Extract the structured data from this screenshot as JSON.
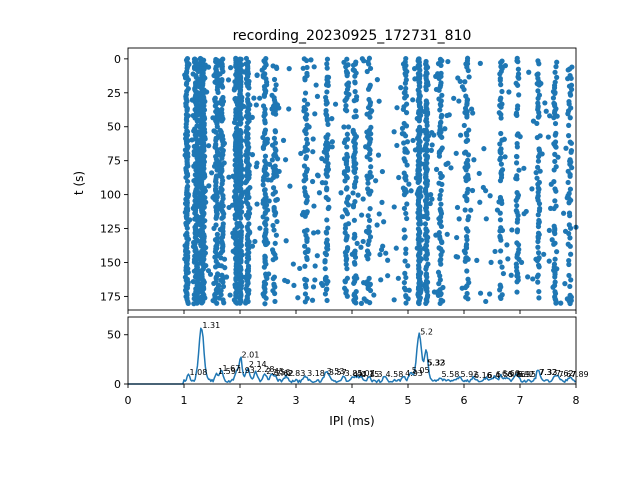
{
  "figure": {
    "title": "recording_20230925_172731_810"
  },
  "colors": {
    "series": "#1f77b4",
    "axes": "#000000",
    "background": "#ffffff"
  },
  "chart_data": [
    {
      "type": "scatter",
      "title": "recording_20230925_172731_810",
      "xlabel": "",
      "ylabel": "t (s)",
      "xlim": [
        0,
        8
      ],
      "ylim": [
        185,
        -8
      ],
      "y_inverted": true,
      "yticks": [
        0,
        25,
        50,
        75,
        100,
        125,
        150,
        175
      ],
      "x_ticklabels_visible": false,
      "grid": false,
      "legend": "none",
      "columns": [
        {
          "x": 1.05,
          "width": 0.05,
          "weight": 1.6
        },
        {
          "x": 1.22,
          "width": 0.07,
          "weight": 2.2
        },
        {
          "x": 1.33,
          "width": 0.08,
          "weight": 3.6
        },
        {
          "x": 1.58,
          "width": 0.06,
          "weight": 1.4
        },
        {
          "x": 1.68,
          "width": 0.06,
          "weight": 1.3
        },
        {
          "x": 1.93,
          "width": 0.05,
          "weight": 1.5
        },
        {
          "x": 2.01,
          "width": 0.04,
          "weight": 2.0
        },
        {
          "x": 2.14,
          "width": 0.05,
          "weight": 1.5
        },
        {
          "x": 2.45,
          "width": 0.06,
          "weight": 1.0
        },
        {
          "x": 2.62,
          "width": 0.06,
          "weight": 0.8
        },
        {
          "x": 3.18,
          "width": 0.06,
          "weight": 0.8
        },
        {
          "x": 3.55,
          "width": 0.05,
          "weight": 0.8
        },
        {
          "x": 3.9,
          "width": 0.06,
          "weight": 0.9
        },
        {
          "x": 4.05,
          "width": 0.05,
          "weight": 0.8
        },
        {
          "x": 4.3,
          "width": 0.06,
          "weight": 0.7
        },
        {
          "x": 4.95,
          "width": 0.05,
          "weight": 0.7
        },
        {
          "x": 5.2,
          "width": 0.04,
          "weight": 2.2
        },
        {
          "x": 5.33,
          "width": 0.05,
          "weight": 1.5
        },
        {
          "x": 5.58,
          "width": 0.06,
          "weight": 0.8
        },
        {
          "x": 6.05,
          "width": 0.06,
          "weight": 0.6
        },
        {
          "x": 6.66,
          "width": 0.05,
          "weight": 0.7
        },
        {
          "x": 6.95,
          "width": 0.05,
          "weight": 0.7
        },
        {
          "x": 7.33,
          "width": 0.05,
          "weight": 0.8
        },
        {
          "x": 7.62,
          "width": 0.05,
          "weight": 0.7
        },
        {
          "x": 7.89,
          "width": 0.05,
          "weight": 0.6
        }
      ],
      "background_points_per_row": 18,
      "row_spacing": 1.2,
      "t_range": [
        0,
        180
      ],
      "sparse_bands": [
        {
          "from": 8,
          "to": 10
        },
        {
          "from": 20,
          "to": 28
        },
        {
          "from": 45,
          "to": 52
        },
        {
          "from": 88,
          "to": 95
        },
        {
          "from": 118,
          "to": 126
        },
        {
          "from": 150,
          "to": 158
        }
      ]
    },
    {
      "type": "line",
      "xlabel": "IPI (ms)",
      "ylabel": "",
      "xlim": [
        0,
        8
      ],
      "ylim": [
        0,
        68
      ],
      "xticks": [
        0,
        1,
        2,
        3,
        4,
        5,
        6,
        7,
        8
      ],
      "yticks": [
        0,
        50
      ],
      "grid": false,
      "legend": "none",
      "peaks": [
        {
          "x": 1.08,
          "y": 8,
          "label": "1.08"
        },
        {
          "x": 1.31,
          "y": 56,
          "label": "1.31"
        },
        {
          "x": 1.59,
          "y": 9,
          "label": "1.59"
        },
        {
          "x": 1.67,
          "y": 12,
          "label": "1.67"
        },
        {
          "x": 1.93,
          "y": 10,
          "label": "1.93"
        },
        {
          "x": 2.01,
          "y": 26,
          "label": "2.01"
        },
        {
          "x": 2.14,
          "y": 16,
          "label": "2.14"
        },
        {
          "x": 2.28,
          "y": 11,
          "label": "2.28"
        },
        {
          "x": 2.45,
          "y": 9,
          "label": "2.45"
        },
        {
          "x": 2.56,
          "y": 8,
          "label": "2.56"
        },
        {
          "x": 2.62,
          "y": 7,
          "label": "2.62"
        },
        {
          "x": 2.83,
          "y": 7,
          "label": "2.83"
        },
        {
          "x": 3.18,
          "y": 7,
          "label": "3.18"
        },
        {
          "x": 3.53,
          "y": 9,
          "label": "3.53"
        },
        {
          "x": 3.57,
          "y": 8,
          "label": "3.57"
        },
        {
          "x": 3.85,
          "y": 7,
          "label": "3.85"
        },
        {
          "x": 4.0,
          "y": 6,
          "label": "4.0"
        },
        {
          "x": 4.07,
          "y": 7,
          "label": "4.07"
        },
        {
          "x": 4.15,
          "y": 6,
          "label": "4.15"
        },
        {
          "x": 4.3,
          "y": 6,
          "label": "4.3"
        },
        {
          "x": 4.58,
          "y": 6,
          "label": "4.58"
        },
        {
          "x": 4.93,
          "y": 7,
          "label": "4.93"
        },
        {
          "x": 5.05,
          "y": 10,
          "label": "5.05"
        },
        {
          "x": 5.2,
          "y": 49,
          "label": "5.2"
        },
        {
          "x": 5.32,
          "y": 18,
          "label": "5.32"
        },
        {
          "x": 5.33,
          "y": 18,
          "label": "5.33"
        },
        {
          "x": 5.58,
          "y": 6,
          "label": "5.58"
        },
        {
          "x": 5.92,
          "y": 6,
          "label": "5.92"
        },
        {
          "x": 6.16,
          "y": 5,
          "label": "6.16"
        },
        {
          "x": 6.4,
          "y": 5,
          "label": "6.4"
        },
        {
          "x": 6.55,
          "y": 6,
          "label": "6.55"
        },
        {
          "x": 6.66,
          "y": 7,
          "label": "6.66"
        },
        {
          "x": 6.76,
          "y": 6,
          "label": "6.76"
        },
        {
          "x": 6.92,
          "y": 6,
          "label": "6.92"
        },
        {
          "x": 6.95,
          "y": 6,
          "label": "6.95"
        },
        {
          "x": 7.32,
          "y": 8,
          "label": "7.32"
        },
        {
          "x": 7.33,
          "y": 8,
          "label": "7.33"
        },
        {
          "x": 7.62,
          "y": 7,
          "label": "7.62"
        },
        {
          "x": 7.67,
          "y": 6,
          "label": "7.67"
        },
        {
          "x": 7.89,
          "y": 6,
          "label": "7.89"
        }
      ],
      "baseline": 1.5,
      "onset_x": 1.0
    }
  ]
}
